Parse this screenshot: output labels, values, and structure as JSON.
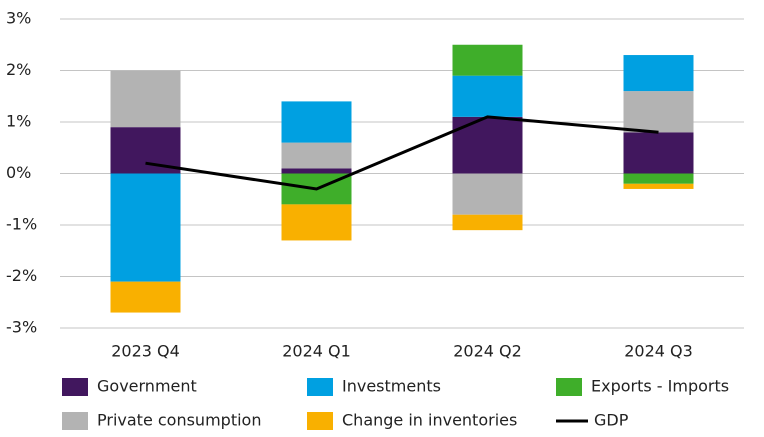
{
  "chart_data": {
    "type": "bar",
    "categories": [
      "2023 Q4",
      "2024 Q1",
      "2024 Q2",
      "2024 Q3"
    ],
    "series": [
      {
        "name": "Government",
        "color": "#41175e",
        "values": [
          0.9,
          0.1,
          1.1,
          0.8
        ]
      },
      {
        "name": "Private consumption",
        "color": "#b3b3b3",
        "values": [
          1.1,
          0.5,
          -0.8,
          0.8
        ]
      },
      {
        "name": "Investments",
        "color": "#00a0e1",
        "values": [
          -2.1,
          0.8,
          0.8,
          0.7
        ]
      },
      {
        "name": "Exports - Imports",
        "color": "#3fae2a",
        "values": [
          0,
          -0.6,
          0.6,
          -0.2
        ]
      },
      {
        "name": "Change in inventories",
        "color": "#f9b000",
        "values": [
          -0.6,
          -0.7,
          -0.3,
          -0.1
        ]
      },
      {
        "name": "GDP",
        "color": "#000000",
        "type": "line",
        "values": [
          0.2,
          -0.3,
          1.1,
          0.8
        ]
      }
    ],
    "ylim": [
      -3,
      3
    ],
    "yticks": [
      {
        "value": -3,
        "label": "-3%"
      },
      {
        "value": -2,
        "label": "-2%"
      },
      {
        "value": -1,
        "label": "-1%"
      },
      {
        "value": 0,
        "label": "0%"
      },
      {
        "value": 1,
        "label": "1%"
      },
      {
        "value": 2,
        "label": "2%"
      },
      {
        "value": 3,
        "label": "3%"
      }
    ],
    "grid": true
  }
}
